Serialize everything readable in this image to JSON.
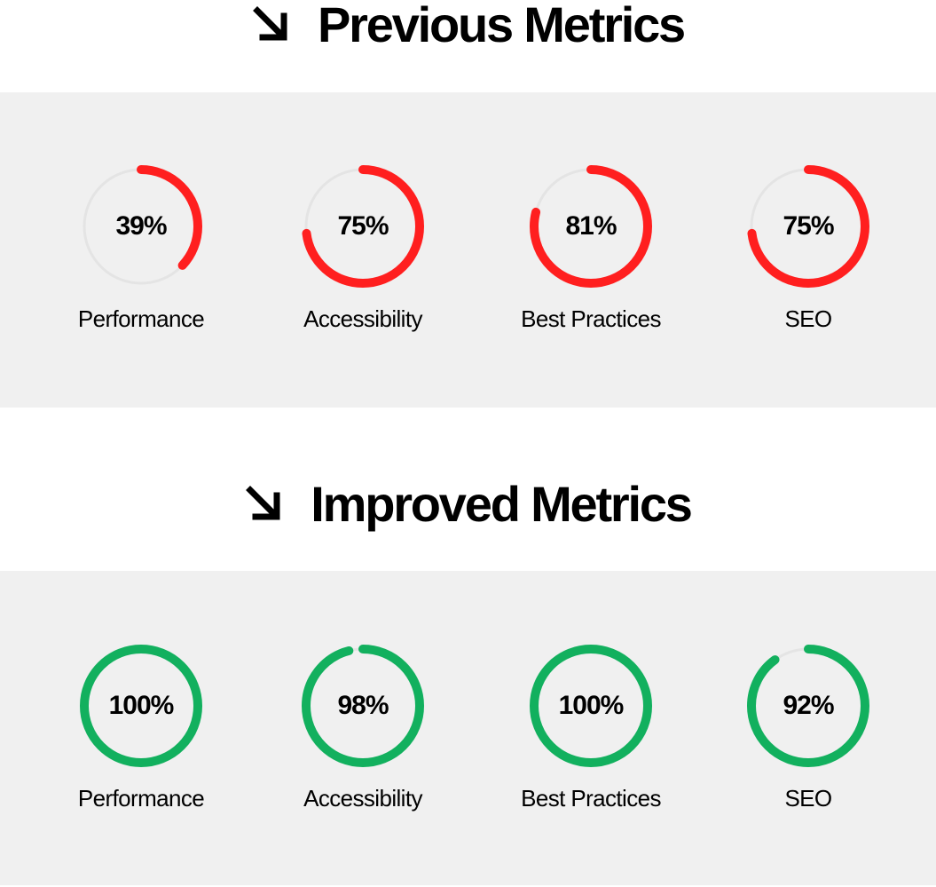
{
  "colors": {
    "track": "#e4e4e4",
    "previous_arc": "#ff1f1f",
    "improved_arc": "#12b05e",
    "panel": "#f0f0f0",
    "text": "#000000"
  },
  "sections": [
    {
      "id": "previous",
      "title": "Previous Metrics",
      "icon": "arrow-down-right-icon",
      "metrics": [
        {
          "label": "Performance",
          "value": 39,
          "display": "39%"
        },
        {
          "label": "Accessibility",
          "value": 75,
          "display": "75%"
        },
        {
          "label": "Best Practices",
          "value": 81,
          "display": "81%"
        },
        {
          "label": "SEO",
          "value": 75,
          "display": "75%"
        }
      ]
    },
    {
      "id": "improved",
      "title": "Improved Metrics",
      "icon": "arrow-down-right-icon",
      "metrics": [
        {
          "label": "Performance",
          "value": 100,
          "display": "100%"
        },
        {
          "label": "Accessibility",
          "value": 98,
          "display": "98%"
        },
        {
          "label": "Best Practices",
          "value": 100,
          "display": "100%"
        },
        {
          "label": "SEO",
          "value": 92,
          "display": "92%"
        }
      ]
    }
  ]
}
